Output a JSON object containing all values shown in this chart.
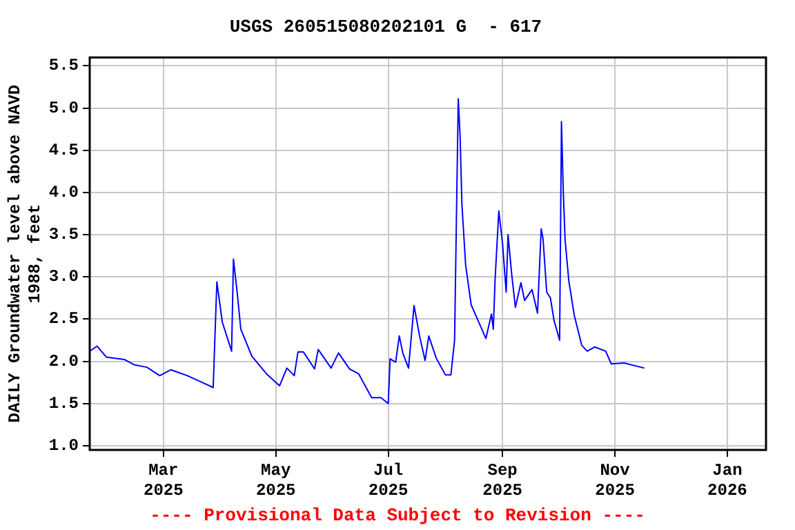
{
  "chart_data": {
    "type": "line",
    "title": "USGS 260515080202101 G  - 617",
    "ylabel": "DAILY Groundwater level above NAVD 1988, feet",
    "annotations": [
      "---- Provisional Data Subject to Revision ----"
    ],
    "x": [
      "2025-01-20",
      "2025-01-24",
      "2025-01-29",
      "2025-02-08",
      "2025-02-13",
      "2025-02-20",
      "2025-02-27",
      "2025-03-05",
      "2025-03-14",
      "2025-03-22",
      "2025-03-28",
      "2025-03-29",
      "2025-03-30",
      "2025-04-02",
      "2025-04-07",
      "2025-04-08",
      "2025-04-10",
      "2025-04-12",
      "2025-04-18",
      "2025-04-26",
      "2025-05-03",
      "2025-05-07",
      "2025-05-11",
      "2025-05-13",
      "2025-05-16",
      "2025-05-22",
      "2025-05-24",
      "2025-05-31",
      "2025-06-04",
      "2025-06-10",
      "2025-06-15",
      "2025-06-22",
      "2025-06-27",
      "2025-07-01",
      "2025-07-02",
      "2025-07-05",
      "2025-07-07",
      "2025-07-09",
      "2025-07-12",
      "2025-07-15",
      "2025-07-18",
      "2025-07-21",
      "2025-07-23",
      "2025-07-27",
      "2025-08-01",
      "2025-08-04",
      "2025-08-06",
      "2025-08-07",
      "2025-08-08",
      "2025-08-09",
      "2025-08-10",
      "2025-08-12",
      "2025-08-15",
      "2025-08-18",
      "2025-08-23",
      "2025-08-26",
      "2025-08-27",
      "2025-08-28",
      "2025-08-30",
      "2025-09-01",
      "2025-09-03",
      "2025-09-04",
      "2025-09-06",
      "2025-09-08",
      "2025-09-11",
      "2025-09-13",
      "2025-09-17",
      "2025-09-20",
      "2025-09-22",
      "2025-09-23",
      "2025-09-25",
      "2025-09-27",
      "2025-09-29",
      "2025-10-02",
      "2025-10-03",
      "2025-10-04",
      "2025-10-05",
      "2025-10-07",
      "2025-10-10",
      "2025-10-14",
      "2025-10-17",
      "2025-10-21",
      "2025-10-27",
      "2025-10-30",
      "2025-11-06",
      "2025-11-17"
    ],
    "series": [
      {
        "color": "#0000ff",
        "values": [
          2.12,
          2.18,
          2.05,
          2.02,
          1.96,
          1.93,
          1.83,
          1.9,
          1.83,
          1.75,
          1.69,
          2.32,
          2.94,
          2.46,
          2.12,
          3.21,
          2.82,
          2.38,
          2.06,
          1.85,
          1.71,
          1.92,
          1.83,
          2.11,
          2.11,
          1.91,
          2.14,
          1.92,
          2.1,
          1.91,
          1.85,
          1.57,
          1.57,
          1.5,
          2.03,
          1.99,
          2.3,
          2.09,
          1.92,
          2.66,
          2.3,
          2.01,
          2.3,
          2.04,
          1.84,
          1.84,
          2.25,
          3.7,
          5.11,
          4.66,
          3.85,
          3.14,
          2.67,
          2.52,
          2.27,
          2.56,
          2.38,
          2.98,
          3.78,
          3.4,
          2.82,
          3.5,
          3.03,
          2.64,
          2.93,
          2.72,
          2.85,
          2.57,
          3.57,
          3.45,
          2.82,
          2.75,
          2.48,
          2.25,
          4.84,
          4.0,
          3.43,
          2.95,
          2.54,
          2.19,
          2.12,
          2.17,
          2.12,
          1.97,
          1.98,
          1.92
        ]
      }
    ],
    "xlim": [
      "2025-01-20",
      "2026-01-22"
    ],
    "xticks": [
      {
        "value": "2025-03-01",
        "label": "Mar 2025"
      },
      {
        "value": "2025-05-01",
        "label": "May 2025"
      },
      {
        "value": "2025-07-01",
        "label": "Jul 2025"
      },
      {
        "value": "2025-09-01",
        "label": "Sep 2025"
      },
      {
        "value": "2025-11-01",
        "label": "Nov 2025"
      },
      {
        "value": "2026-01-01",
        "label": "Jan 2026"
      }
    ],
    "ylim": [
      0.95,
      5.6
    ],
    "yticks": [
      {
        "value": 1,
        "label": "1.0"
      },
      {
        "value": 1.5,
        "label": "1.5"
      },
      {
        "value": 2,
        "label": "2.0"
      },
      {
        "value": 2.5,
        "label": "2.5"
      },
      {
        "value": 3,
        "label": "3.0"
      },
      {
        "value": 3.5,
        "label": "3.5"
      },
      {
        "value": 4,
        "label": "4.0"
      },
      {
        "value": 4.5,
        "label": "4.5"
      },
      {
        "value": 5,
        "label": "5.0"
      },
      {
        "value": 5.5,
        "label": "5.5"
      }
    ],
    "grid": true,
    "legend": false,
    "marker": "none",
    "line_style": "solid"
  }
}
